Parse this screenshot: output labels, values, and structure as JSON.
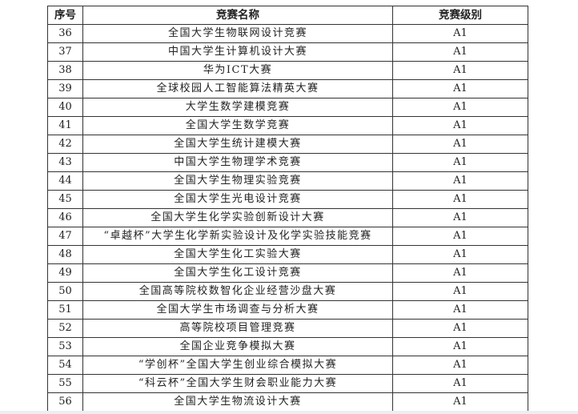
{
  "table": {
    "headers": [
      "序号",
      "竞赛名称",
      "竞赛级别"
    ],
    "rows": [
      {
        "no": "36",
        "name": "全国大学生物联网设计竞赛",
        "level": "A1"
      },
      {
        "no": "37",
        "name": "中国大学生计算机设计大赛",
        "level": "A1"
      },
      {
        "no": "38",
        "name": "华为ICT大赛",
        "level": "A1"
      },
      {
        "no": "39",
        "name": "全球校园人工智能算法精英大赛",
        "level": "A1"
      },
      {
        "no": "40",
        "name": "大学生数学建模竞赛",
        "level": "A1"
      },
      {
        "no": "41",
        "name": "全国大学生数学竞赛",
        "level": "A1"
      },
      {
        "no": "42",
        "name": "全国大学生统计建模大赛",
        "level": "A1"
      },
      {
        "no": "43",
        "name": "中国大学生物理学术竞赛",
        "level": "A1"
      },
      {
        "no": "44",
        "name": "全国大学生物理实验竞赛",
        "level": "A1"
      },
      {
        "no": "45",
        "name": "全国大学生光电设计竞赛",
        "level": "A1"
      },
      {
        "no": "46",
        "name": "全国大学生化学实验创新设计大赛",
        "level": "A1"
      },
      {
        "no": "47",
        "name": "“卓越杯”大学生化学新实验设计及化学实验技能竞赛",
        "level": "A1"
      },
      {
        "no": "48",
        "name": "全国大学生化工实验大赛",
        "level": "A1"
      },
      {
        "no": "49",
        "name": "全国大学生化工设计竞赛",
        "level": "A1"
      },
      {
        "no": "50",
        "name": "全国高等院校数智化企业经营沙盘大赛",
        "level": "A1"
      },
      {
        "no": "51",
        "name": "全国大学生市场调查与分析大赛",
        "level": "A1"
      },
      {
        "no": "52",
        "name": "高等院校项目管理竞赛",
        "level": "A1"
      },
      {
        "no": "53",
        "name": "全国企业竞争模拟大赛",
        "level": "A1"
      },
      {
        "no": "54",
        "name": "“学创杯”全国大学生创业综合模拟大赛",
        "level": "A1"
      },
      {
        "no": "55",
        "name": "“科云杯”全国大学生财会职业能力大赛",
        "level": "A1"
      },
      {
        "no": "56",
        "name": "全国大学生物流设计大赛",
        "level": "A1"
      }
    ]
  }
}
